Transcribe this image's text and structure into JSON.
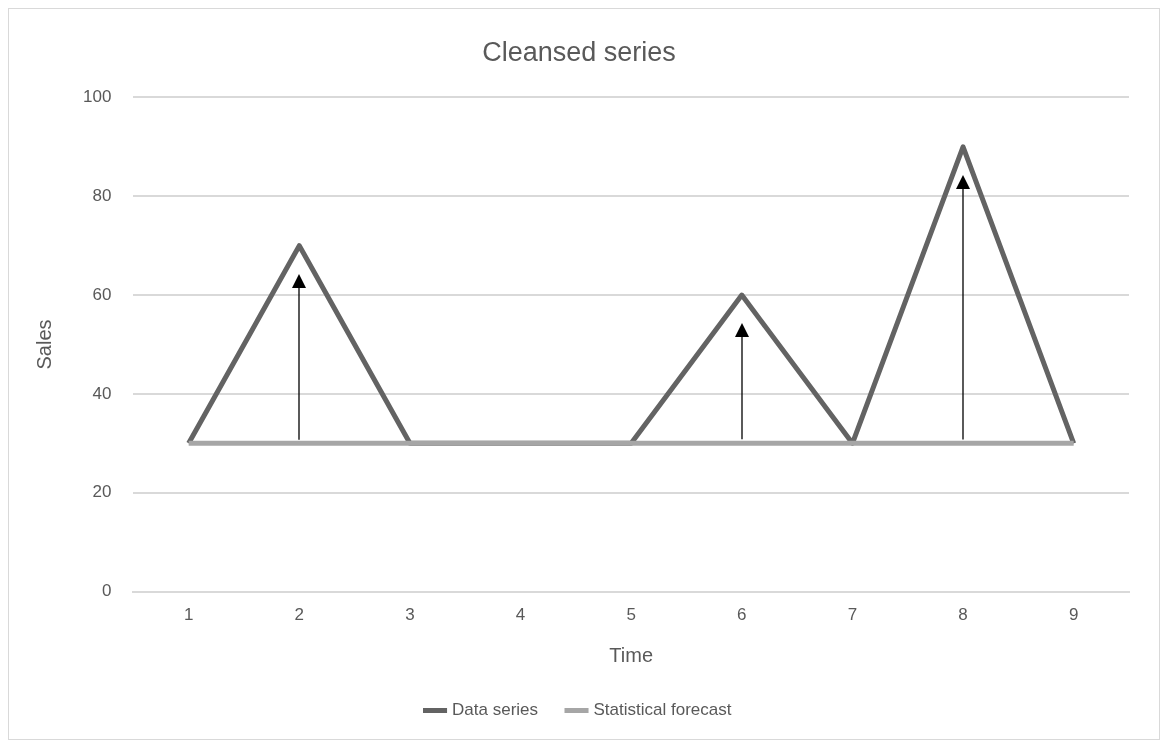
{
  "chart_data": {
    "type": "line",
    "title": "Cleansed series",
    "xlabel": "Time",
    "ylabel": "Sales",
    "categories": [
      "1",
      "2",
      "3",
      "4",
      "5",
      "6",
      "7",
      "8",
      "9"
    ],
    "series": [
      {
        "name": "Data series",
        "color": "#636363",
        "values": [
          30,
          70,
          30,
          30,
          30,
          60,
          30,
          90,
          30
        ]
      },
      {
        "name": "Statistical forecast",
        "color": "#a6a6a6",
        "values": [
          30,
          30,
          30,
          30,
          30,
          30,
          30,
          30,
          30
        ]
      }
    ],
    "ylim": [
      0,
      100
    ],
    "yticks": [
      0,
      20,
      40,
      60,
      80,
      100
    ],
    "grid": "y",
    "legend": "bottom",
    "marker": "none",
    "line_style": "solid"
  }
}
